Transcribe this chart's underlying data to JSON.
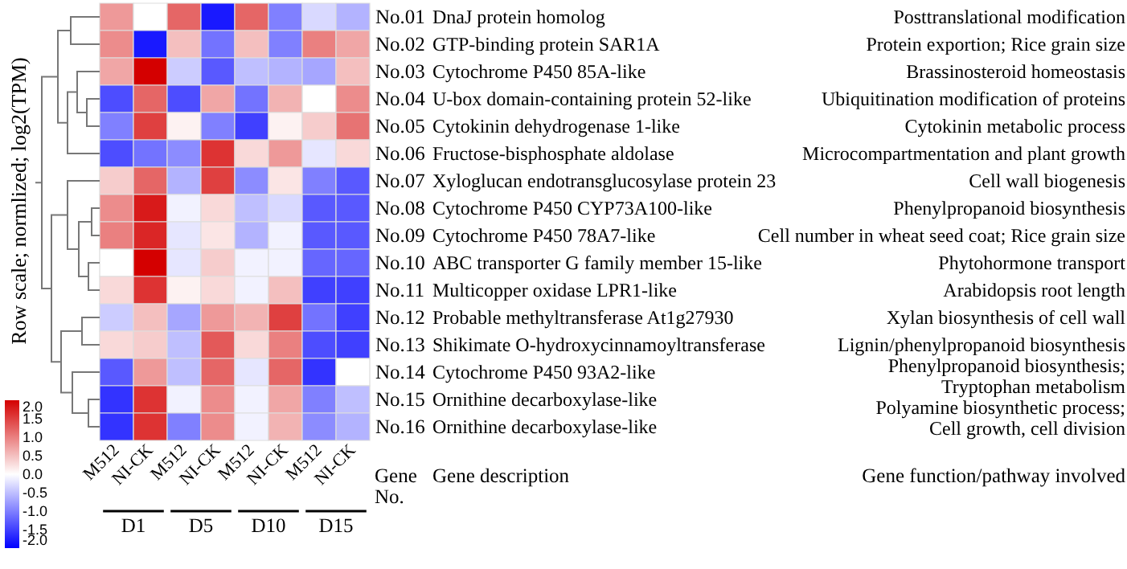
{
  "chart_data": {
    "type": "heatmap",
    "clabel": "Row scale; normlized; log2(TPM)",
    "categories": [
      "M512",
      "NI-CK",
      "M512",
      "NI-CK",
      "M512",
      "NI-CK",
      "M512",
      "NI-CK"
    ],
    "y_categories": [
      "No.01",
      "No.02",
      "No.03",
      "No.04",
      "No.05",
      "No.06",
      "No.07",
      "No.08",
      "No.09",
      "No.10",
      "No.11",
      "No.12",
      "No.13",
      "No.14",
      "No.15",
      "No.16"
    ],
    "y2_categories": [
      "DnaJ protein homolog",
      "GTP-binding protein SAR1A",
      "Cytochrome P450 85A-like",
      "U-box domain-containing protein 52-like",
      "Cytokinin dehydrogenase 1-like",
      "Fructose-bisphosphate aldolase",
      "Xyloglucan endotransglucosylase protein 23",
      "Cytochrome P450 CYP73A100-like",
      "Cytochrome P450 78A7-like",
      "ABC transporter G family member 15-like",
      "Multicopper oxidase LPR1-like",
      "Probable methyltransferase At1g27930",
      "Shikimate O-hydroxycinnamoyltransferase",
      "Cytochrome P450 93A2-like",
      "Ornithine decarboxylase-like",
      "Ornithine decarboxylase-like"
    ],
    "cells": [
      [
        0.8,
        0.0,
        1.2,
        -1.8,
        1.2,
        -1.0,
        -0.3,
        -0.6
      ],
      [
        0.9,
        -1.8,
        0.5,
        -1.1,
        0.5,
        -1.0,
        1.0,
        0.7
      ],
      [
        0.7,
        2.0,
        -0.4,
        -1.3,
        -0.5,
        -0.6,
        -0.7,
        0.5
      ],
      [
        -1.4,
        1.2,
        -1.4,
        0.7,
        -1.1,
        0.6,
        0.0,
        0.9
      ],
      [
        -1.0,
        1.5,
        0.1,
        -1.0,
        -1.5,
        0.1,
        0.4,
        1.1
      ],
      [
        -1.4,
        -1.1,
        -0.9,
        1.6,
        0.3,
        0.8,
        -0.2,
        0.3
      ],
      [
        0.4,
        1.2,
        -0.6,
        1.5,
        -0.9,
        0.2,
        -1.0,
        -1.3
      ],
      [
        0.9,
        1.8,
        -0.1,
        0.3,
        -0.5,
        -0.3,
        -1.3,
        -1.3
      ],
      [
        1.0,
        1.7,
        -0.2,
        0.2,
        -0.6,
        -0.1,
        -1.3,
        -1.3
      ],
      [
        0.0,
        2.0,
        -0.2,
        0.4,
        -0.1,
        -0.1,
        -1.2,
        -1.2
      ],
      [
        0.3,
        1.6,
        0.1,
        0.3,
        -0.1,
        0.5,
        -1.5,
        -1.5
      ],
      [
        -0.4,
        0.5,
        -0.7,
        0.8,
        0.6,
        1.5,
        -1.1,
        -1.5
      ],
      [
        0.3,
        0.4,
        -0.5,
        1.3,
        0.3,
        1.0,
        -1.4,
        -1.5
      ],
      [
        -1.3,
        0.8,
        -0.5,
        1.2,
        -0.2,
        1.2,
        -1.6,
        0.0
      ],
      [
        -1.6,
        1.6,
        -0.1,
        0.9,
        -0.1,
        0.7,
        -1.0,
        -0.5
      ],
      [
        -1.6,
        1.6,
        -1.0,
        0.9,
        -0.1,
        0.6,
        -0.9,
        -0.6
      ]
    ],
    "clim": [
      -2,
      2
    ],
    "cticks": [
      {
        "value": 2,
        "label": "2.0"
      },
      {
        "value": 1.5,
        "label": "1.5"
      },
      {
        "value": 1,
        "label": "1.0"
      },
      {
        "value": 0.5,
        "label": "0.5"
      },
      {
        "value": 0,
        "label": "0.0"
      },
      {
        "value": -0.5,
        "label": "-0.5"
      },
      {
        "value": -1,
        "label": "-1.0"
      },
      {
        "value": -1.5,
        "label": "-1.5"
      },
      {
        "value": -2,
        "label": "-2.0"
      }
    ],
    "annotations": [
      "Posttranslational modification",
      "Protein exportion; Rice grain size",
      "Brassinosteroid homeostasis",
      "Ubiquitination modification of proteins",
      "Cytokinin metabolic process",
      "Microcompartmentation and plant growth",
      "Cell wall biogenesis",
      "Phenylpropanoid biosynthesis",
      "Cell number in wheat seed coat; Rice grain size",
      "Phytohormone transport",
      "Arabidopsis root length",
      "Xylan biosynthesis of cell wall",
      "Lignin/phenylpropanoid biosynthesis",
      "Phenylpropanoid biosynthesis;\nTryptophan metabolism",
      "Polyamine biosynthetic process;",
      "Cell growth, cell division",
      "Gene\nNo.",
      "Gene description",
      "Gene function/pathway involved",
      "D1",
      "D5",
      "D10",
      "D15"
    ]
  }
}
